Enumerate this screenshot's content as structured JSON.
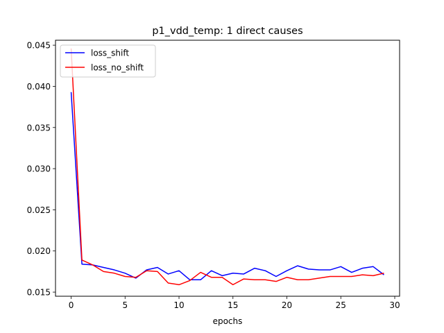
{
  "chart_data": {
    "type": "line",
    "title": "p1_vdd_temp: 1 direct causes",
    "xlabel": "epochs",
    "ylabel": "",
    "xlim": [
      -1.45,
      30.45
    ],
    "ylim": [
      0.0145,
      0.0456
    ],
    "xticks": [
      0,
      5,
      10,
      15,
      20,
      25,
      30
    ],
    "xtick_labels": [
      "0",
      "5",
      "10",
      "15",
      "20",
      "25",
      "30"
    ],
    "yticks": [
      0.015,
      0.02,
      0.025,
      0.03,
      0.035,
      0.04,
      0.045
    ],
    "ytick_labels": [
      "0.015",
      "0.020",
      "0.025",
      "0.030",
      "0.035",
      "0.040",
      "0.045"
    ],
    "grid": false,
    "legend_position": "top-left",
    "x": [
      0,
      1,
      2,
      3,
      4,
      5,
      6,
      7,
      8,
      9,
      10,
      11,
      12,
      13,
      14,
      15,
      16,
      17,
      18,
      19,
      20,
      21,
      22,
      23,
      24,
      25,
      26,
      27,
      28,
      29
    ],
    "series": [
      {
        "name": "loss_shift",
        "color": "#0000ff",
        "values": [
          0.0393,
          0.0184,
          0.0183,
          0.018,
          0.0177,
          0.0173,
          0.0167,
          0.0177,
          0.018,
          0.0172,
          0.0176,
          0.0165,
          0.0165,
          0.0176,
          0.017,
          0.0173,
          0.0172,
          0.0179,
          0.0176,
          0.0169,
          0.0176,
          0.0182,
          0.0178,
          0.0177,
          0.0177,
          0.0181,
          0.0174,
          0.0179,
          0.0181,
          0.0171
        ]
      },
      {
        "name": "loss_no_shift",
        "color": "#ff0000",
        "values": [
          0.0446,
          0.0189,
          0.0183,
          0.0175,
          0.0173,
          0.0169,
          0.0168,
          0.0176,
          0.0175,
          0.0161,
          0.0159,
          0.0164,
          0.0174,
          0.0168,
          0.0168,
          0.0159,
          0.0166,
          0.0165,
          0.0165,
          0.0163,
          0.0168,
          0.0165,
          0.0165,
          0.0167,
          0.0169,
          0.0169,
          0.0169,
          0.0171,
          0.017,
          0.0173
        ]
      }
    ]
  }
}
